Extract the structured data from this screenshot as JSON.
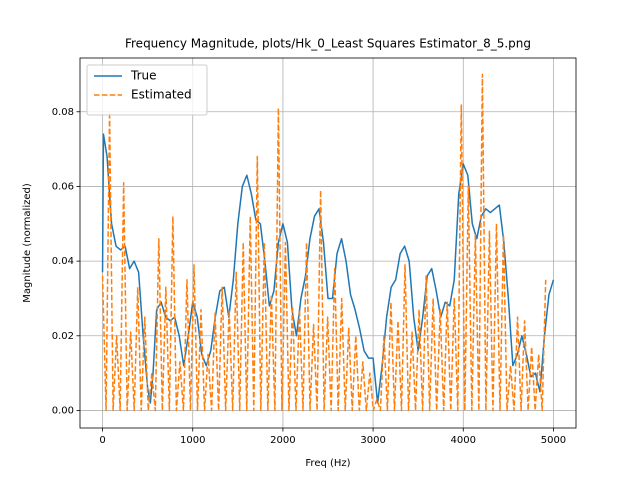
{
  "chart_data": {
    "type": "line",
    "title": "Frequency Magnitude, plots/Hk_0_Least Squares Estimator_8_5.png",
    "x_label": "Freq (Hz)",
    "y_label": "Magnitude (normalized)",
    "xlim": [
      -250,
      5250
    ],
    "ylim": [
      -0.0047,
      0.0944
    ],
    "xticks": [
      0,
      1000,
      2000,
      3000,
      4000,
      5000
    ],
    "yticks": [
      {
        "value": 0,
        "label": "0.00"
      },
      {
        "value": 0.02,
        "label": "0.02"
      },
      {
        "value": 0.04,
        "label": "0.04"
      },
      {
        "value": 0.06,
        "label": "0.06"
      },
      {
        "value": 0.08,
        "label": "0.08"
      }
    ],
    "grid": true,
    "legend": "upper left",
    "series": [
      {
        "name": "True",
        "color": "#1f77b4",
        "style": "solid",
        "x": [
          0,
          10,
          50,
          100,
          150,
          200,
          250,
          300,
          350,
          400,
          450,
          500,
          530,
          560,
          600,
          650,
          700,
          750,
          800,
          850,
          900,
          950,
          1000,
          1050,
          1100,
          1150,
          1200,
          1250,
          1300,
          1350,
          1400,
          1450,
          1500,
          1550,
          1600,
          1650,
          1700,
          1750,
          1800,
          1850,
          1900,
          1950,
          2000,
          2050,
          2100,
          2150,
          2200,
          2250,
          2300,
          2350,
          2400,
          2450,
          2500,
          2550,
          2600,
          2650,
          2700,
          2750,
          2800,
          2850,
          2900,
          2950,
          3000,
          3050,
          3100,
          3150,
          3200,
          3250,
          3300,
          3350,
          3400,
          3450,
          3500,
          3550,
          3600,
          3650,
          3700,
          3750,
          3800,
          3850,
          3900,
          3950,
          4000,
          4050,
          4100,
          4150,
          4200,
          4250,
          4300,
          4350,
          4400,
          4450,
          4500,
          4550,
          4600,
          4650,
          4700,
          4750,
          4800,
          4850,
          4900,
          4950,
          5000
        ],
        "values": [
          0.037,
          0.074,
          0.068,
          0.05,
          0.044,
          0.043,
          0.044,
          0.038,
          0.04,
          0.037,
          0.02,
          0.006,
          0.002,
          0.01,
          0.027,
          0.029,
          0.025,
          0.024,
          0.025,
          0.02,
          0.012,
          0.02,
          0.029,
          0.025,
          0.015,
          0.012,
          0.016,
          0.025,
          0.032,
          0.033,
          0.025,
          0.035,
          0.05,
          0.06,
          0.063,
          0.058,
          0.051,
          0.05,
          0.04,
          0.028,
          0.032,
          0.045,
          0.05,
          0.045,
          0.027,
          0.02,
          0.03,
          0.036,
          0.046,
          0.052,
          0.054,
          0.045,
          0.03,
          0.03,
          0.042,
          0.046,
          0.04,
          0.031,
          0.027,
          0.022,
          0.016,
          0.014,
          0.014,
          0.002,
          0.012,
          0.025,
          0.033,
          0.035,
          0.042,
          0.044,
          0.04,
          0.025,
          0.016,
          0.025,
          0.036,
          0.038,
          0.032,
          0.025,
          0.029,
          0.028,
          0.035,
          0.058,
          0.066,
          0.063,
          0.05,
          0.046,
          0.052,
          0.054,
          0.053,
          0.054,
          0.055,
          0.045,
          0.03,
          0.012,
          0.015,
          0.02,
          0.015,
          0.009,
          0.01,
          0.005,
          0.02,
          0.031,
          0.035
        ]
      },
      {
        "name": "Estimated",
        "color": "#ff7f0e",
        "style": "dashed",
        "x": [
          0,
          39,
          78,
          117,
          156,
          195,
          234,
          273,
          312,
          351,
          390,
          429,
          468,
          507,
          546,
          585,
          624,
          663,
          702,
          741,
          780,
          819,
          858,
          897,
          936,
          975,
          1014,
          1053,
          1092,
          1131,
          1170,
          1209,
          1248,
          1287,
          1326,
          1365,
          1404,
          1443,
          1482,
          1521,
          1560,
          1599,
          1638,
          1677,
          1716,
          1755,
          1794,
          1833,
          1872,
          1911,
          1950,
          1989,
          2028,
          2067,
          2106,
          2145,
          2184,
          2223,
          2262,
          2301,
          2340,
          2379,
          2418,
          2457,
          2496,
          2535,
          2574,
          2613,
          2652,
          2691,
          2730,
          2769,
          2808,
          2847,
          2886,
          2925,
          2964,
          3003,
          3042,
          3081,
          3120,
          3159,
          3198,
          3237,
          3276,
          3315,
          3354,
          3393,
          3432,
          3471,
          3510,
          3549,
          3588,
          3627,
          3666,
          3705,
          3744,
          3783,
          3822,
          3861,
          3900,
          3939,
          3978,
          4017,
          4056,
          4095,
          4134,
          4173,
          4212,
          4251,
          4290,
          4329,
          4368,
          4407,
          4446,
          4485,
          4524,
          4563,
          4602,
          4641,
          4680,
          4719,
          4758,
          4797,
          4836,
          4875,
          4914
        ],
        "values": [
          0.036,
          0,
          0.08,
          0,
          0.02,
          0,
          0.061,
          0,
          0.021,
          0,
          0.033,
          0,
          0.025,
          0,
          0.01,
          0,
          0.046,
          0,
          0.033,
          0,
          0.052,
          0,
          0.013,
          0,
          0.035,
          0,
          0.039,
          0,
          0.027,
          0,
          0.015,
          0,
          0.026,
          0,
          0.033,
          0,
          0.027,
          0,
          0.037,
          0,
          0.045,
          0,
          0.052,
          0,
          0.068,
          0,
          0.045,
          0,
          0.031,
          0,
          0.081,
          0,
          0.045,
          0,
          0.028,
          0,
          0.027,
          0,
          0.045,
          0,
          0.023,
          0,
          0.059,
          0,
          0.025,
          0,
          0.038,
          0,
          0.03,
          0,
          0.022,
          0,
          0.02,
          0,
          0.013,
          0,
          0.01,
          0,
          0.003,
          0,
          0.02,
          0,
          0.029,
          0,
          0.024,
          0,
          0.039,
          0,
          0.021,
          0,
          0.027,
          0,
          0.036,
          0,
          0.03,
          0,
          0.027,
          0,
          0.029,
          0,
          0.03,
          0,
          0.082,
          0,
          0.06,
          0,
          0.047,
          0,
          0.09,
          0,
          0.048,
          0,
          0.05,
          0,
          0.047,
          0,
          0.012,
          0,
          0.025,
          0,
          0.024,
          0,
          0.017,
          0,
          0.015,
          0,
          0.035
        ]
      }
    ]
  }
}
